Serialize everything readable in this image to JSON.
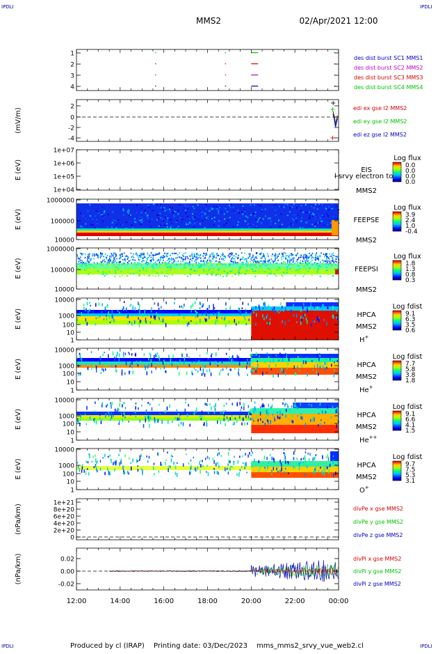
{
  "header": {
    "corner_left_top": "IPDLI",
    "corner_right_top": "IPDLI",
    "title": "MMS2",
    "date": "02/Apr/2021 12:00"
  },
  "footer": {
    "corner_left_bottom": "IPDLI",
    "corner_right_bottom": "IPDLI",
    "produced_by": "Produced by cl (IRAP)",
    "printing_date": "Printing date: 03/Dec/2023",
    "script_name": "mms_mms2_srvy_vue_web2.cl"
  },
  "colors": {
    "black": "#000000",
    "red": "#d40000",
    "green": "#00c000",
    "blue": "#0000c0",
    "magenta": "#c000c0",
    "status_blue": "#0000aa"
  },
  "x_axis": {
    "start": "12:00",
    "end": "00:00",
    "tick_labels": [
      "12:00",
      "14:00",
      "16:00",
      "18:00",
      "20:00",
      "22:00",
      "00:00"
    ]
  },
  "chart_data": [
    {
      "id": "burst",
      "type": "scatter",
      "ylabel": "",
      "y_ticks": [
        "1",
        "2",
        "3",
        "4"
      ],
      "series": [
        {
          "name": "des dist burst SC1 MMS1",
          "color": "#0000c0"
        },
        {
          "name": "des dist burst SC2 MMS2",
          "color": "#c000c0"
        },
        {
          "name": "des dist burst SC3 MMS3",
          "color": "#d40000"
        },
        {
          "name": "des dist burst SC4 MMS4",
          "color": "#00c000"
        }
      ]
    },
    {
      "id": "edi",
      "type": "line",
      "ylabel": "(mV/m)",
      "y_ticks": [
        "2",
        "0",
        "-2",
        "-4"
      ],
      "series": [
        {
          "name": "edi ex gse l2 MMS2",
          "color": "#d40000"
        },
        {
          "name": "edi ey gse l2 MMS2",
          "color": "#00c000"
        },
        {
          "name": "edi ez gse l2 MMS2",
          "color": "#0000c0"
        }
      ]
    },
    {
      "id": "eis",
      "type": "heatmap",
      "ylabel": "E (eV)",
      "y_ticks": [
        "1e+07",
        "1e+06",
        "1e+05",
        "1e+04"
      ],
      "instrument": "EIS",
      "spacecraft": "MMS2",
      "overlay_text": "l srvy electron to",
      "colorbar_title": "Log flux",
      "colorbar_ticks": [
        "0.0",
        "0.0",
        "0.0",
        "0.0"
      ]
    },
    {
      "id": "feepse",
      "type": "heatmap",
      "ylabel": "E (eV)",
      "y_ticks": [
        "1000000",
        "100000",
        "10000"
      ],
      "instrument": "FEEPSE",
      "spacecraft": "MMS2",
      "colorbar_title": "Log flux",
      "colorbar_ticks": [
        "3.9",
        "2.4",
        "1.0",
        "-0.4"
      ]
    },
    {
      "id": "feepsi",
      "type": "heatmap",
      "ylabel": "E (eV)",
      "y_ticks": [
        "1000000",
        "100000",
        "10000"
      ],
      "instrument": "FEEPSI",
      "spacecraft": "MMS2",
      "colorbar_title": "Log flux",
      "colorbar_ticks": [
        "1.8",
        "1.3",
        "0.8",
        "0.3"
      ]
    },
    {
      "id": "hpca_h",
      "type": "heatmap",
      "ylabel": "E (eV)",
      "y_ticks": [
        "10000",
        "1000",
        "100",
        "10",
        "1"
      ],
      "instrument": "HPCA",
      "spacecraft": "MMS2",
      "species": "H",
      "species_sup": "+",
      "colorbar_title": "Log fdist",
      "colorbar_ticks": [
        "9.1",
        "6.3",
        "3.5",
        "0.6"
      ]
    },
    {
      "id": "hpca_he",
      "type": "heatmap",
      "ylabel": "E (eV)",
      "y_ticks": [
        "10000",
        "1000",
        "100",
        "10",
        "1"
      ],
      "instrument": "HPCA",
      "spacecraft": "MMS2",
      "species": "He",
      "species_sup": "+",
      "colorbar_title": "Log fdist",
      "colorbar_ticks": [
        "7.7",
        "5.8",
        "3.8",
        "1.8"
      ]
    },
    {
      "id": "hpca_hepp",
      "type": "heatmap",
      "ylabel": "E (eV)",
      "y_ticks": [
        "10000",
        "1000",
        "100",
        "10",
        "1"
      ],
      "instrument": "HPCA",
      "spacecraft": "MMS2",
      "species": "He",
      "species_sup": "++",
      "colorbar_title": "Log fdist",
      "colorbar_ticks": [
        "9.1",
        "6.6",
        "4.1",
        "1.5"
      ]
    },
    {
      "id": "hpca_o",
      "type": "heatmap",
      "ylabel": "E (eV)",
      "y_ticks": [
        "10000",
        "1000",
        "100",
        "10",
        "1"
      ],
      "instrument": "HPCA",
      "spacecraft": "MMS2",
      "species": "O",
      "species_sup": "+",
      "colorbar_title": "Log fdist",
      "colorbar_ticks": [
        "9.7",
        "7.5",
        "5.3",
        "3.1"
      ]
    },
    {
      "id": "divpe",
      "type": "line",
      "ylabel": "(nPa/km)",
      "y_ticks": [
        "1e+21",
        "8e+20",
        "6e+20",
        "4e+20",
        "2e+20",
        "0"
      ],
      "ylim": [
        0,
        1e+21
      ],
      "series": [
        {
          "name": "divPe x gse MMS2",
          "color": "#d40000"
        },
        {
          "name": "divPe y gse MMS2",
          "color": "#00c000"
        },
        {
          "name": "divPe z gse MMS2",
          "color": "#0000c0"
        }
      ]
    },
    {
      "id": "divpi",
      "type": "line",
      "ylabel": "(nPa/km)",
      "y_ticks": [
        "0.02",
        "0.00",
        "-0.02"
      ],
      "ylim": [
        -0.03,
        0.03
      ],
      "series": [
        {
          "name": "divPi x gse MMS2",
          "color": "#d40000"
        },
        {
          "name": "divPi y gse MMS2",
          "color": "#00c000"
        },
        {
          "name": "divPi z gse MMS2",
          "color": "#0000c0"
        }
      ]
    }
  ]
}
